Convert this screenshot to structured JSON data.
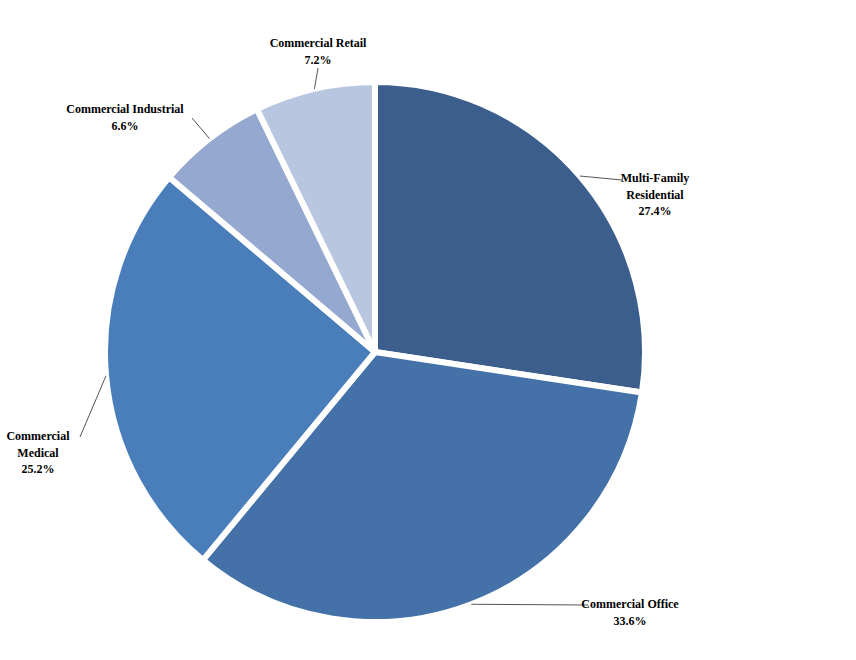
{
  "chart_data": {
    "type": "pie",
    "categories": [
      "Multi-Family Residential",
      "Commercial Office",
      "Commercial Medical",
      "Commercial Industrial",
      "Commercial Retail"
    ],
    "values": [
      27.4,
      33.6,
      25.2,
      6.6,
      7.2
    ],
    "value_labels": [
      "27.4%",
      "33.6%",
      "25.2%",
      "6.6%",
      "7.2%"
    ],
    "colors": [
      "#3b5e8c",
      "#4472a8",
      "#4a7ebb",
      "#95a8d0",
      "#b9c6e0"
    ],
    "data_labels": true
  }
}
